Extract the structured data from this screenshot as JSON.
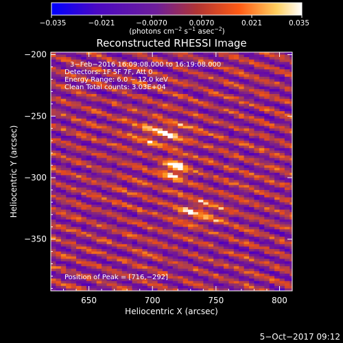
{
  "chart_data": {
    "type": "heatmap",
    "title": "Reconstructed RHESSI Image",
    "xlabel": "Heliocentric X (arcsec)",
    "ylabel": "Heliocentric Y (arcsec)",
    "x_range": [
      620,
      810
    ],
    "y_range": [
      -392,
      -198
    ],
    "x_ticks": [
      650,
      700,
      750,
      800
    ],
    "y_ticks": [
      -200,
      -250,
      -300,
      -350
    ],
    "x_tick_labels": [
      "650",
      "700",
      "750",
      "800"
    ],
    "y_tick_labels": [
      "−200",
      "−250",
      "−300",
      "−350"
    ],
    "colorbar": {
      "range": [
        -0.035,
        0.035
      ],
      "ticks": [
        -0.035,
        -0.021,
        -0.007,
        0.007,
        0.021,
        0.035
      ],
      "tick_labels": [
        "−0.035",
        "−0.021",
        "−0.0070",
        "0.0070",
        "0.021",
        "0.035"
      ],
      "unit_prefix": "(photons cm",
      "unit_exp1": "−2",
      "unit_mid": " s",
      "unit_exp2": "−1",
      "unit_mid2": " asec",
      "unit_exp3": "−2",
      "unit_suffix": ")"
    },
    "annotations": [
      "3−Feb−2016 16:09:08.000 to 16:19:08.000",
      "Detectors: 1F 5F 7F, Att 0",
      "Energy Range: 6.0 − 12.0 keV",
      "Clean    Total counts: 3.03E+04"
    ],
    "peak_label": "Position of Peak = [716,−292]",
    "peak": {
      "x": 716,
      "y": -292,
      "value": 0.035
    },
    "secondary_sources": [
      {
        "x": 706,
        "y": -263,
        "value": 0.024
      },
      {
        "x": 735,
        "y": -327,
        "value": 0.02
      }
    ],
    "background_range": [
      -0.03,
      0.03
    ],
    "pixel_size_arcsec": [
      4,
      2
    ],
    "colormap": [
      "#0000ff",
      "#5a00b4",
      "#7a1e8c",
      "#a03a5a",
      "#e64a1c",
      "#ff9c22",
      "#ffffff"
    ],
    "grid": false,
    "legend": "none"
  },
  "footer": {
    "timestamp": "5−Oct−2017 09:12"
  }
}
